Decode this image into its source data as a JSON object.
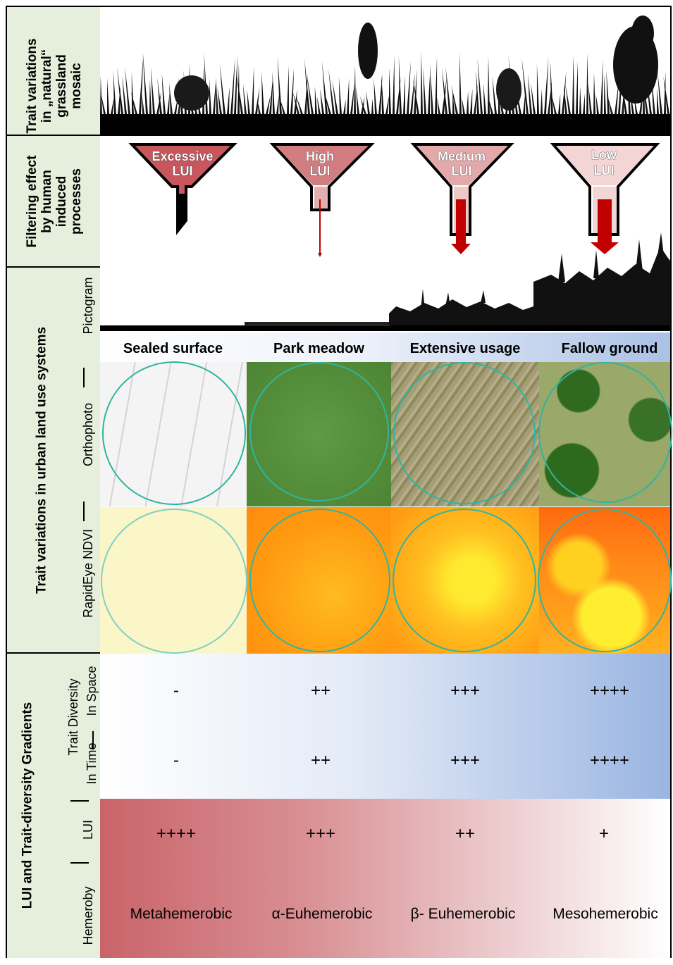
{
  "side_labels": {
    "row1": [
      "Trait variations",
      "in „natural“",
      "grassland",
      "mosaic"
    ],
    "row2": [
      "Filtering effect",
      "by human",
      "induced",
      "processes"
    ],
    "row3_title": "Trait variations in urban land use systems",
    "row3_sub": {
      "pictogram": "Pictogram",
      "orthophoto": "Orthophoto",
      "ndvi": "RapidEye  NDVI"
    },
    "row4_title": "LUI and Trait-diversity Gradients",
    "row4_sub": {
      "trait_diversity": "Trait Diversity",
      "in_time": "In Time",
      "in_space": "In Space",
      "lui": "LUI",
      "hemeroby": "Hemeroby"
    }
  },
  "funnels": [
    {
      "line1": "Excessive",
      "line2": "LUI",
      "color": "#c8575d"
    },
    {
      "line1": "High",
      "line2": "LUI",
      "color": "#d27d80"
    },
    {
      "line1": "Medium",
      "line2": "LUI",
      "color": "#e3a9aa"
    },
    {
      "line1": "Low",
      "line2": "LUI",
      "color": "#f3d5d5"
    }
  ],
  "columns": [
    "Sealed surface",
    "Park meadow",
    "Extensive usage",
    "Fallow ground"
  ],
  "trait_diversity_space": [
    "-",
    "++",
    "+++",
    "++++"
  ],
  "trait_diversity_time": [
    "-",
    "++",
    "+++",
    "++++"
  ],
  "lui": [
    "++++",
    "+++",
    "++",
    "+"
  ],
  "hemeroby": [
    "Metahemerobic",
    "α-Euhemerobic",
    "β- Euhemerobic",
    "Mesohemerobic"
  ],
  "colors": {
    "side_bg": "#e6efdc",
    "blue_gradient_end": "#98b4e0",
    "red_gradient_start": "#c9646a",
    "arrow": "#c00000"
  }
}
